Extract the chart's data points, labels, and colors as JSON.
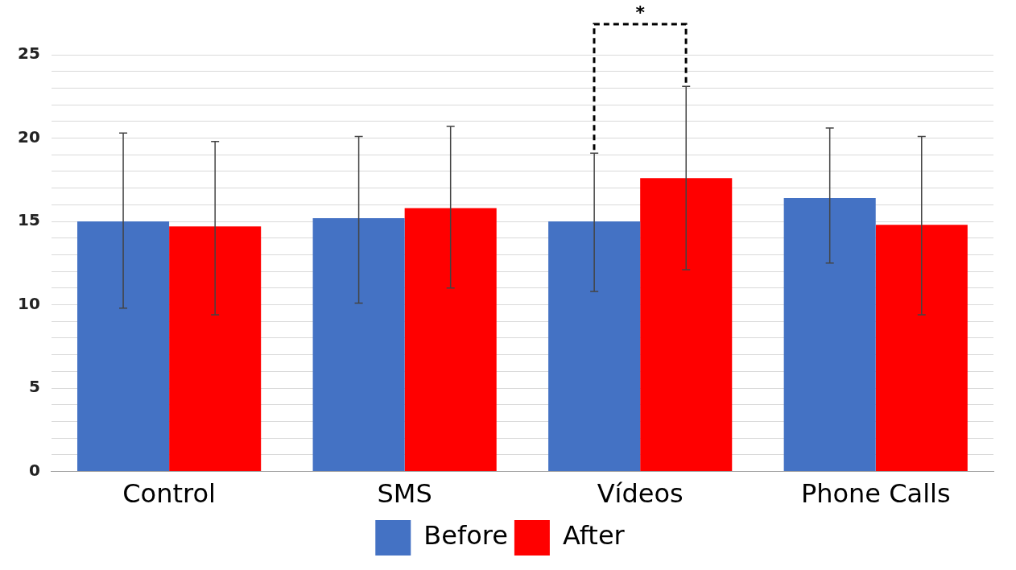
{
  "chart_data": {
    "type": "bar",
    "categories": [
      "Control",
      "SMS",
      "Vídeos",
      "Phone Calls"
    ],
    "series": [
      {
        "name": "Before",
        "color": "#4472c4",
        "values": [
          15.0,
          15.2,
          15.0,
          16.4
        ],
        "errors": [
          [
            9.8,
            20.3
          ],
          [
            10.1,
            20.1
          ],
          [
            10.8,
            19.1
          ],
          [
            12.5,
            20.6
          ]
        ]
      },
      {
        "name": "After",
        "color": "#ff0000",
        "values": [
          14.7,
          15.8,
          17.6,
          14.8
        ],
        "errors": [
          [
            9.4,
            19.8
          ],
          [
            11.0,
            20.7
          ],
          [
            12.1,
            23.1
          ],
          [
            9.4,
            20.1
          ]
        ]
      }
    ],
    "ylim": [
      0,
      25
    ],
    "yticks": [
      0,
      {
        "value": 1,
        "label": null
      },
      {
        "value": 2,
        "label": null
      },
      {
        "value": 3,
        "label": null
      },
      {
        "value": 4,
        "label": null
      },
      5,
      {
        "value": 6,
        "label": null
      },
      {
        "value": 7,
        "label": null
      },
      {
        "value": 8,
        "label": null
      },
      {
        "value": 9,
        "label": null
      },
      10,
      {
        "value": 11,
        "label": null
      },
      {
        "value": 12,
        "label": null
      },
      {
        "value": 13,
        "label": null
      },
      {
        "value": 14,
        "label": null
      },
      15,
      {
        "value": 16,
        "label": null
      },
      {
        "value": 17,
        "label": null
      },
      {
        "value": 18,
        "label": null
      },
      {
        "value": 19,
        "label": null
      },
      20,
      {
        "value": 21,
        "label": null
      },
      {
        "value": 22,
        "label": null
      },
      {
        "value": 23,
        "label": null
      },
      {
        "value": 24,
        "label": null
      },
      25
    ],
    "grid": "y",
    "legend": "bottom",
    "annotations": [
      "*"
    ]
  }
}
